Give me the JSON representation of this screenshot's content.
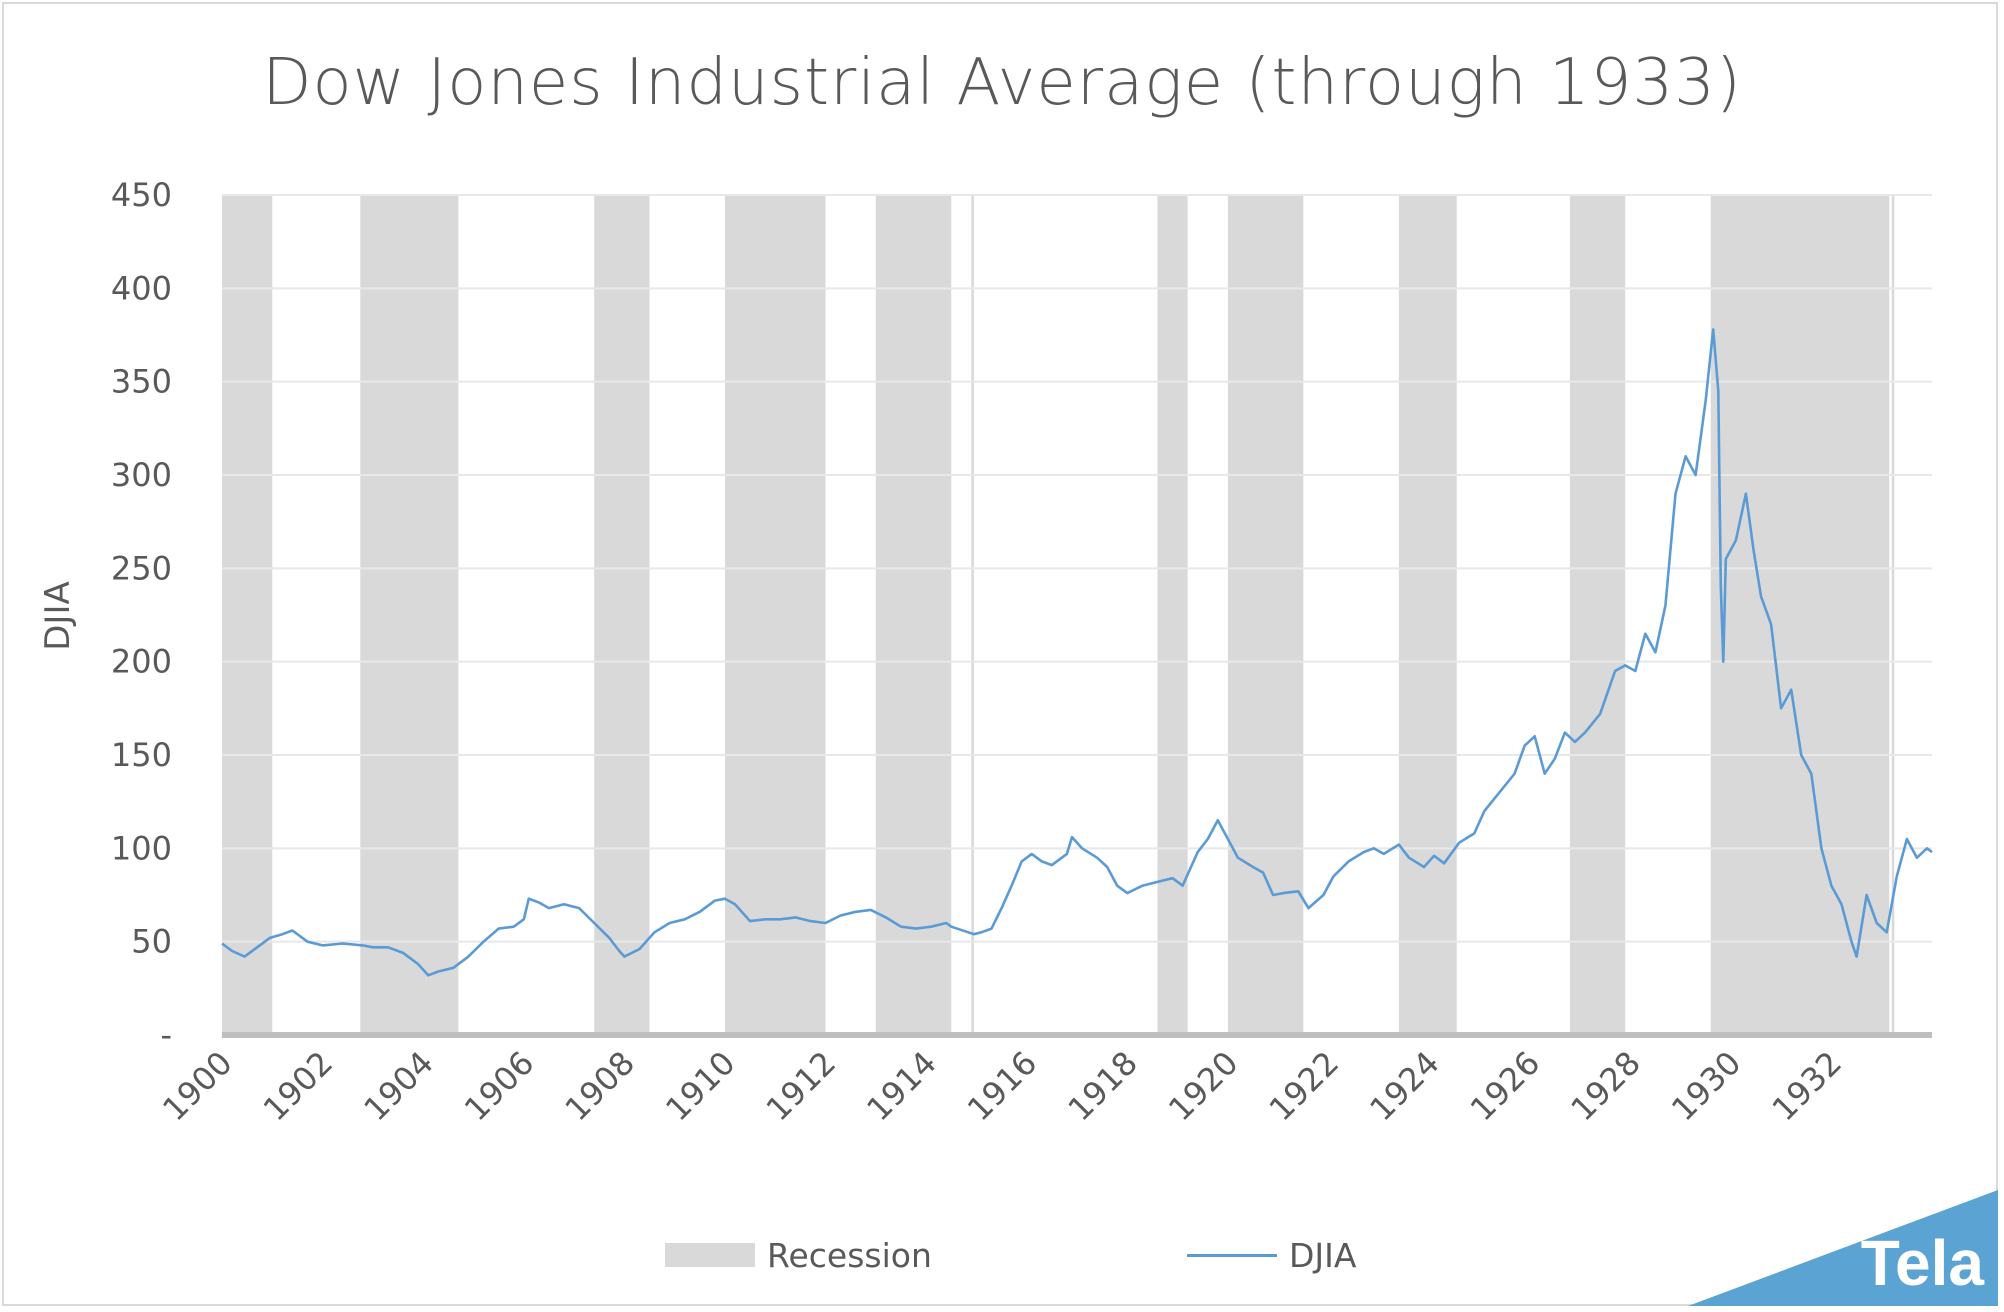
{
  "chart_data": {
    "type": "line",
    "title": "Dow Jones Industrial Average (through 1933)",
    "ylabel": "DJIA",
    "xlabel": "",
    "xlim": [
      1900,
      1934
    ],
    "ylim": [
      0,
      450
    ],
    "y_ticks": [
      0,
      50,
      100,
      150,
      200,
      250,
      300,
      350,
      400,
      450
    ],
    "y_tick_labels": [
      "-",
      "50",
      "100",
      "150",
      "200",
      "250",
      "300",
      "350",
      "400",
      "450"
    ],
    "x_ticks": [
      1900,
      1902,
      1904,
      1906,
      1908,
      1910,
      1912,
      1914,
      1916,
      1918,
      1920,
      1922,
      1924,
      1926,
      1928,
      1930,
      1932
    ],
    "x_tick_labels": [
      "1900",
      "1902",
      "1904",
      "1906",
      "1908",
      "1910",
      "1912",
      "1914",
      "1916",
      "1918",
      "1920",
      "1922",
      "1924",
      "1926",
      "1928",
      "1930",
      "1932"
    ],
    "grid": "horizontal",
    "legend_position": "bottom",
    "legend": [
      {
        "name": "Recession",
        "kind": "area",
        "color": "#d9d9d9"
      },
      {
        "name": "DJIA",
        "kind": "line",
        "color": "#5b9bd5"
      }
    ],
    "recessions": [
      [
        1900.0,
        1901.0
      ],
      [
        1902.75,
        1904.7
      ],
      [
        1907.4,
        1908.5
      ],
      [
        1910.0,
        1912.0
      ],
      [
        1913.0,
        1914.5
      ],
      [
        1914.9,
        1914.95
      ],
      [
        1918.6,
        1919.2
      ],
      [
        1920.0,
        1921.5
      ],
      [
        1923.4,
        1924.55
      ],
      [
        1926.8,
        1927.9
      ],
      [
        1929.6,
        1933.15
      ],
      [
        1933.2,
        1933.25
      ]
    ],
    "series": [
      {
        "name": "DJIA",
        "points": [
          [
            1900.0,
            49
          ],
          [
            1900.2,
            45
          ],
          [
            1900.45,
            42
          ],
          [
            1900.7,
            47
          ],
          [
            1900.95,
            52
          ],
          [
            1901.2,
            54
          ],
          [
            1901.4,
            56
          ],
          [
            1901.7,
            50
          ],
          [
            1902.0,
            48
          ],
          [
            1902.4,
            49
          ],
          [
            1902.8,
            48
          ],
          [
            1903.0,
            47
          ],
          [
            1903.3,
            47
          ],
          [
            1903.6,
            44
          ],
          [
            1903.9,
            38
          ],
          [
            1904.1,
            32
          ],
          [
            1904.3,
            34
          ],
          [
            1904.6,
            36
          ],
          [
            1904.9,
            42
          ],
          [
            1905.2,
            50
          ],
          [
            1905.5,
            57
          ],
          [
            1905.8,
            58
          ],
          [
            1906.0,
            62
          ],
          [
            1906.1,
            73
          ],
          [
            1906.3,
            71
          ],
          [
            1906.5,
            68
          ],
          [
            1906.8,
            70
          ],
          [
            1907.1,
            68
          ],
          [
            1907.4,
            60
          ],
          [
            1907.7,
            52
          ],
          [
            1907.9,
            45
          ],
          [
            1908.0,
            42
          ],
          [
            1908.3,
            46
          ],
          [
            1908.6,
            55
          ],
          [
            1908.9,
            60
          ],
          [
            1909.2,
            62
          ],
          [
            1909.5,
            66
          ],
          [
            1909.8,
            72
          ],
          [
            1910.0,
            73
          ],
          [
            1910.2,
            70
          ],
          [
            1910.5,
            61
          ],
          [
            1910.8,
            62
          ],
          [
            1911.1,
            62
          ],
          [
            1911.4,
            63
          ],
          [
            1911.7,
            61
          ],
          [
            1912.0,
            60
          ],
          [
            1912.3,
            64
          ],
          [
            1912.6,
            66
          ],
          [
            1912.9,
            67
          ],
          [
            1913.2,
            63
          ],
          [
            1913.5,
            58
          ],
          [
            1913.8,
            57
          ],
          [
            1914.1,
            58
          ],
          [
            1914.4,
            60
          ],
          [
            1914.5,
            58
          ],
          [
            1914.95,
            54
          ],
          [
            1915.1,
            55
          ],
          [
            1915.3,
            57
          ],
          [
            1915.5,
            68
          ],
          [
            1915.7,
            80
          ],
          [
            1915.9,
            93
          ],
          [
            1916.1,
            97
          ],
          [
            1916.3,
            93
          ],
          [
            1916.5,
            91
          ],
          [
            1916.8,
            97
          ],
          [
            1916.9,
            106
          ],
          [
            1917.1,
            100
          ],
          [
            1917.4,
            95
          ],
          [
            1917.6,
            90
          ],
          [
            1917.8,
            80
          ],
          [
            1918.0,
            76
          ],
          [
            1918.3,
            80
          ],
          [
            1918.6,
            82
          ],
          [
            1918.9,
            84
          ],
          [
            1919.1,
            80
          ],
          [
            1919.4,
            98
          ],
          [
            1919.6,
            105
          ],
          [
            1919.8,
            115
          ],
          [
            1920.0,
            105
          ],
          [
            1920.2,
            95
          ],
          [
            1920.5,
            90
          ],
          [
            1920.7,
            87
          ],
          [
            1920.9,
            75
          ],
          [
            1921.1,
            76
          ],
          [
            1921.4,
            77
          ],
          [
            1921.6,
            68
          ],
          [
            1921.9,
            75
          ],
          [
            1922.1,
            85
          ],
          [
            1922.4,
            93
          ],
          [
            1922.7,
            98
          ],
          [
            1922.9,
            100
          ],
          [
            1923.1,
            97
          ],
          [
            1923.4,
            102
          ],
          [
            1923.6,
            95
          ],
          [
            1923.9,
            90
          ],
          [
            1924.1,
            96
          ],
          [
            1924.3,
            92
          ],
          [
            1924.6,
            103
          ],
          [
            1924.9,
            108
          ],
          [
            1925.1,
            120
          ],
          [
            1925.4,
            130
          ],
          [
            1925.7,
            140
          ],
          [
            1925.9,
            155
          ],
          [
            1926.1,
            160
          ],
          [
            1926.3,
            140
          ],
          [
            1926.5,
            148
          ],
          [
            1926.7,
            162
          ],
          [
            1926.9,
            157
          ],
          [
            1927.1,
            162
          ],
          [
            1927.4,
            172
          ],
          [
            1927.7,
            195
          ],
          [
            1927.9,
            198
          ],
          [
            1928.1,
            195
          ],
          [
            1928.3,
            215
          ],
          [
            1928.5,
            205
          ],
          [
            1928.7,
            230
          ],
          [
            1928.9,
            290
          ],
          [
            1929.1,
            310
          ],
          [
            1929.3,
            300
          ],
          [
            1929.5,
            340
          ],
          [
            1929.65,
            378
          ],
          [
            1929.75,
            345
          ],
          [
            1929.8,
            240
          ],
          [
            1929.85,
            200
          ],
          [
            1929.9,
            255
          ],
          [
            1930.1,
            265
          ],
          [
            1930.3,
            290
          ],
          [
            1930.45,
            260
          ],
          [
            1930.6,
            235
          ],
          [
            1930.8,
            220
          ],
          [
            1931.0,
            175
          ],
          [
            1931.2,
            185
          ],
          [
            1931.4,
            150
          ],
          [
            1931.6,
            140
          ],
          [
            1931.8,
            100
          ],
          [
            1932.0,
            80
          ],
          [
            1932.2,
            70
          ],
          [
            1932.4,
            50
          ],
          [
            1932.5,
            42
          ],
          [
            1932.7,
            75
          ],
          [
            1932.9,
            60
          ],
          [
            1933.1,
            55
          ],
          [
            1933.3,
            85
          ],
          [
            1933.5,
            105
          ],
          [
            1933.7,
            95
          ],
          [
            1933.9,
            100
          ],
          [
            1934.0,
            98
          ]
        ]
      }
    ]
  },
  "brand": {
    "text": "Tela",
    "color": "#5ba3d2"
  }
}
